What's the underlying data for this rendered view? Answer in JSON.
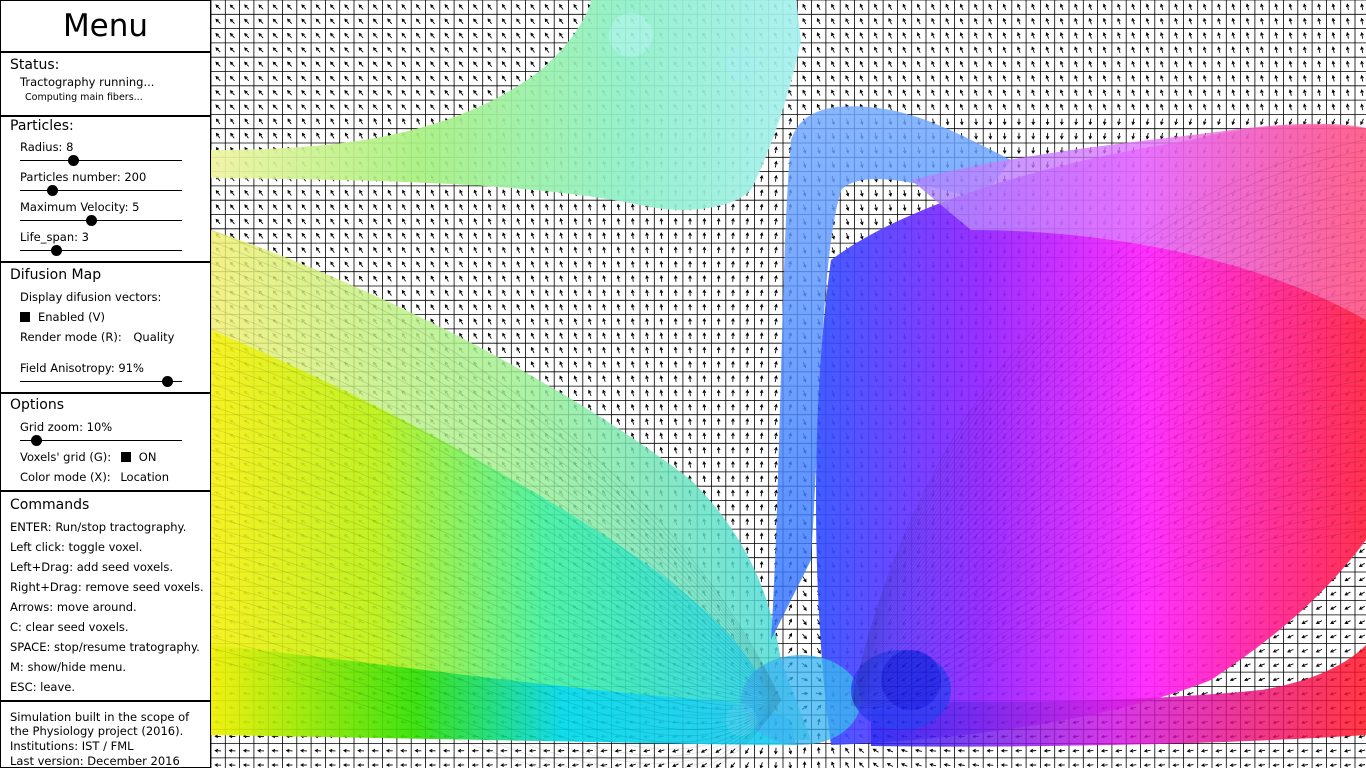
{
  "menu": {
    "title": "Menu",
    "status": {
      "heading": "Status:",
      "line1": "Tractography running...",
      "line2": "Computing main fibers..."
    },
    "particles": {
      "heading": "Particles:",
      "radius": {
        "label": "Radius: 8",
        "fraction": 0.33
      },
      "number": {
        "label": "Particles number: 200",
        "fraction": 0.2
      },
      "velocity": {
        "label": "Maximum Velocity: 5",
        "fraction": 0.44
      },
      "lifespan": {
        "label": "Life_span: 3",
        "fraction": 0.22
      }
    },
    "difusion": {
      "heading": "Difusion Map",
      "display_label": "Display difusion vectors:",
      "enabled_label": "Enabled (V)",
      "render_label": "Render mode (R):",
      "render_value": "Quality",
      "anisotropy": {
        "label": "Field Anisotropy: 91%",
        "fraction": 0.91
      }
    },
    "options": {
      "heading": "Options",
      "grid_zoom": {
        "label": "Grid zoom: 10%",
        "fraction": 0.1
      },
      "voxels_label": "Voxels' grid (G):",
      "voxels_value": "ON",
      "color_label": "Color mode (X):",
      "color_value": "Location"
    },
    "commands": {
      "heading": "Commands",
      "items": [
        "ENTER: Run/stop tractography.",
        "Left click: toggle voxel.",
        "Left+Drag: add seed voxels.",
        "Right+Drag: remove seed voxels.",
        "Arrows: move around.",
        "C: clear seed voxels.",
        "SPACE: stop/resume tratography.",
        "M: show/hide menu.",
        "ESC: leave."
      ]
    },
    "about": {
      "lines": [
        "Simulation built in the scope of",
        "the Physiology project (2016).",
        "Institutions: IST / FML",
        "Last version: December 2016"
      ]
    }
  },
  "colors": {
    "panel_border": "#000000",
    "background": "#ffffff"
  }
}
